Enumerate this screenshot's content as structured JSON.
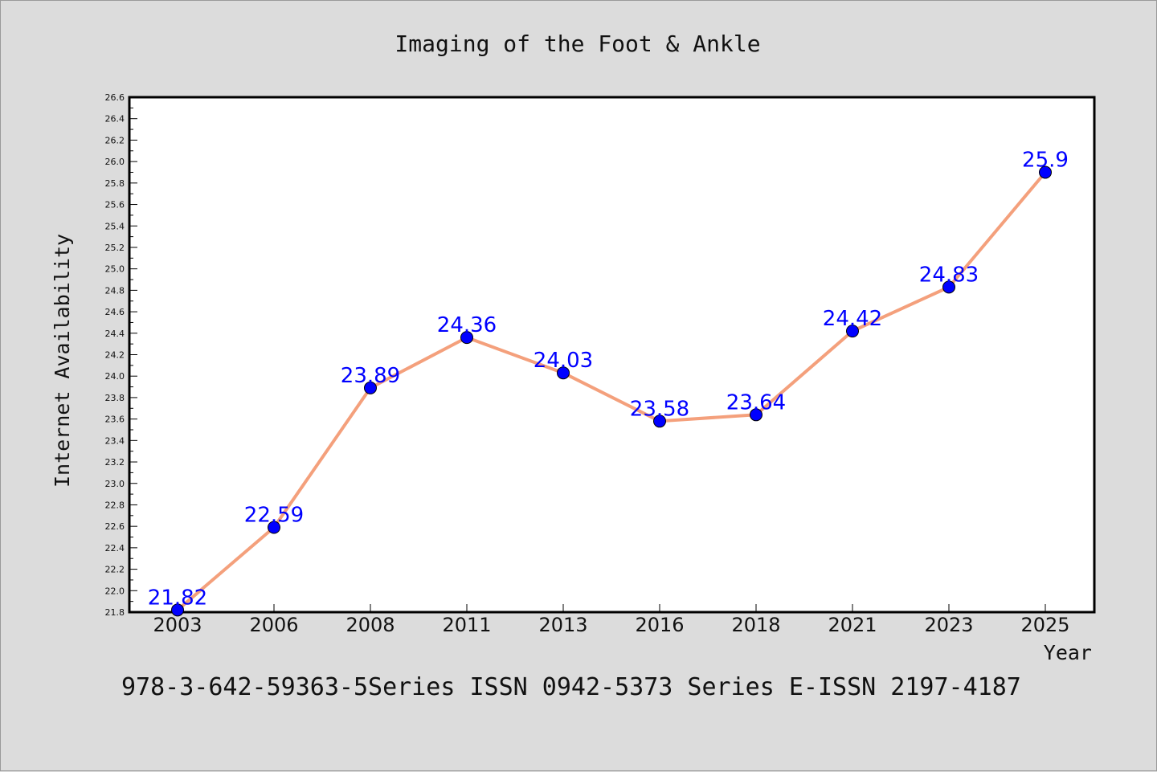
{
  "chart_data": {
    "type": "line",
    "title": "Imaging of the Foot & Ankle",
    "xlabel": "Year",
    "ylabel": "Internet Availability",
    "categories": [
      "2003",
      "2006",
      "2008",
      "2011",
      "2013",
      "2016",
      "2018",
      "2021",
      "2023",
      "2025"
    ],
    "values": [
      21.82,
      22.59,
      23.89,
      24.36,
      24.03,
      23.58,
      23.64,
      24.42,
      24.83,
      25.9
    ],
    "data_labels": [
      "21.82",
      "22.59",
      "23.89",
      "24.36",
      "24.03",
      "23.58",
      "23.64",
      "24.42",
      "24.83",
      "25.9"
    ],
    "ylim": [
      21.8,
      26.6
    ],
    "yticks": [
      "21.8",
      "22.0",
      "22.2",
      "22.4",
      "22.6",
      "22.8",
      "23.0",
      "23.2",
      "23.4",
      "23.6",
      "23.8",
      "24.0",
      "24.2",
      "24.4",
      "24.6",
      "24.8",
      "25.0",
      "25.2",
      "25.4",
      "25.6",
      "25.8",
      "26.0",
      "26.2",
      "26.4",
      "26.6"
    ],
    "grid": false,
    "line_color": "#f4a07c",
    "marker_color": "#0000ff",
    "label_color": "#0000ff",
    "footer": "978-3-642-59363-5Series ISSN 0942-5373 Series E-ISSN 2197-4187"
  }
}
